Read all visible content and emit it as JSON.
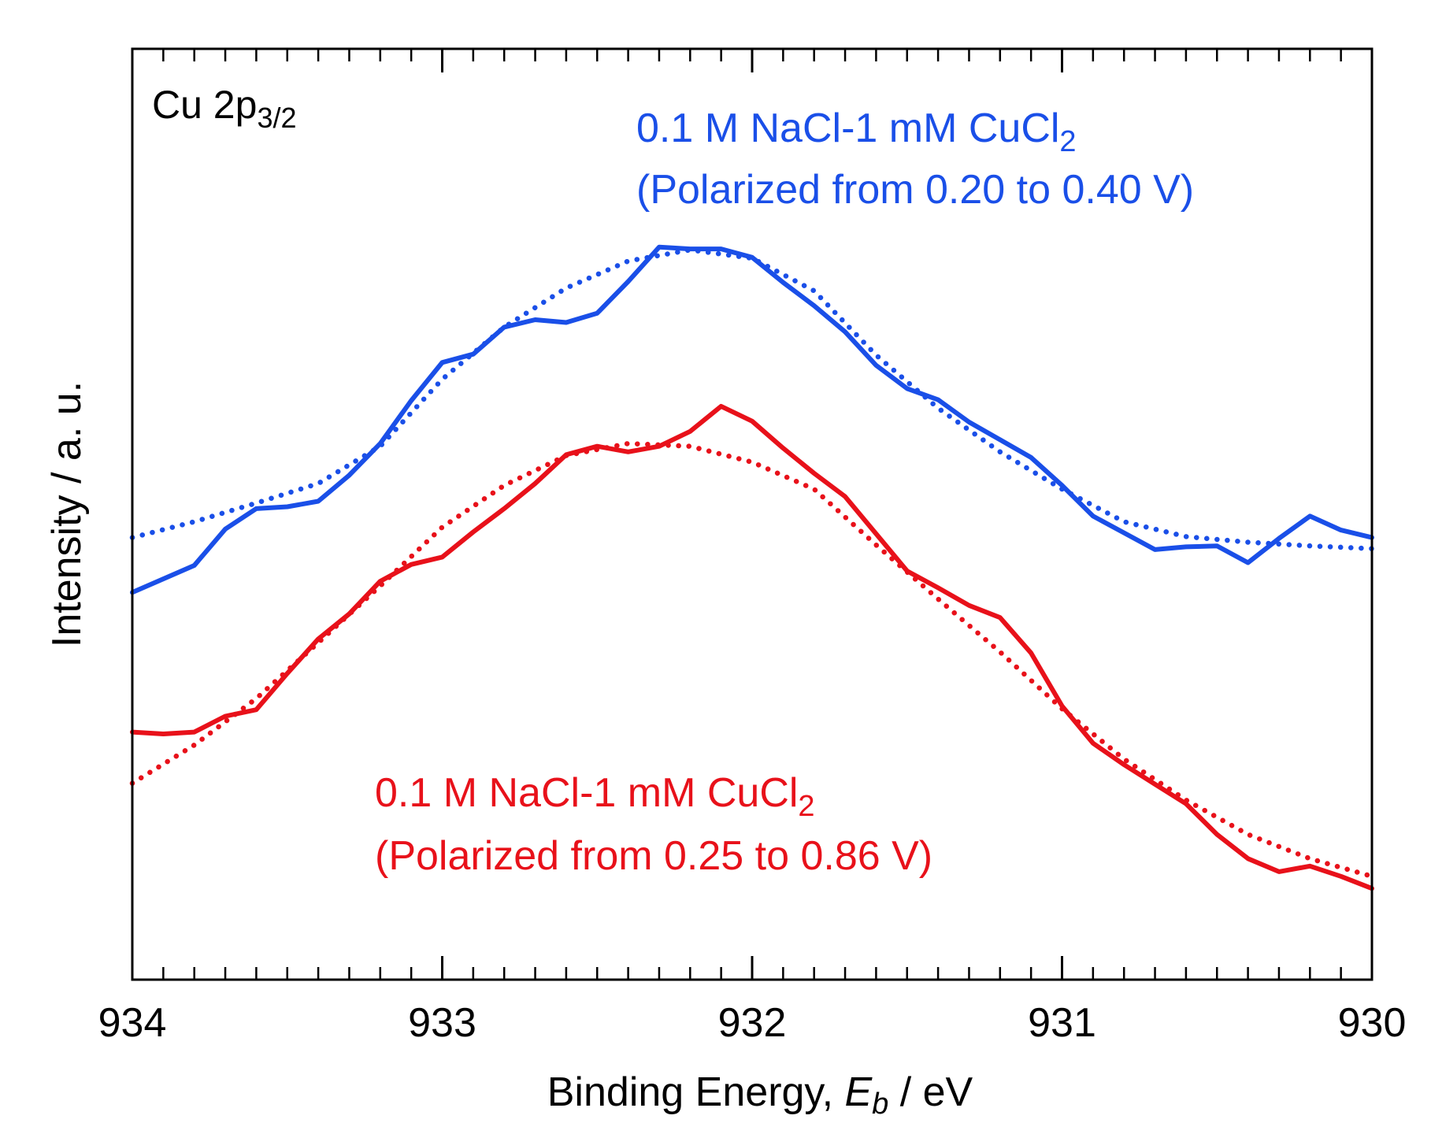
{
  "chart_data": {
    "type": "line",
    "title": "",
    "panel_label": "Cu 2p",
    "panel_label_sub": "3/2",
    "xlabel": "Binding Energy, ",
    "xlabel_var": "E",
    "xlabel_var_sub": "b",
    "xlabel_unit": " / eV",
    "ylabel": "Intensity / a. u.",
    "xlim": [
      934,
      930
    ],
    "ylim": [
      0,
      100
    ],
    "xticks": [
      934,
      933,
      932,
      931,
      930
    ],
    "xtick_labels": [
      "934",
      "933",
      "932",
      "931",
      "930"
    ],
    "grid": false,
    "colors": {
      "blue": "#1a4fe8",
      "red": "#e8111a",
      "axis": "#000000"
    },
    "annotations": [
      {
        "id": "blue",
        "lines": [
          {
            "text": "0.1 M NaCl-1 mM CuCl",
            "sub": "2"
          },
          {
            "text": "(Polarized from 0.20 to 0.40 V)",
            "sub": ""
          }
        ]
      },
      {
        "id": "red",
        "lines": [
          {
            "text": "0.1 M NaCl-1 mM CuCl",
            "sub": "2"
          },
          {
            "text": "(Polarized from 0.25 to 0.86 V)",
            "sub": ""
          }
        ]
      }
    ],
    "series": [
      {
        "name": "0.1 M NaCl-1 mM CuCl2 (Polarized from 0.20 to 0.40 V) measured",
        "color": "#1a4fe8",
        "style": "solid",
        "x": [
          934.0,
          933.8,
          933.7,
          933.6,
          933.5,
          933.4,
          933.3,
          933.2,
          933.1,
          933.0,
          932.9,
          932.8,
          932.7,
          932.6,
          932.5,
          932.4,
          932.3,
          932.2,
          932.1,
          932.0,
          931.9,
          931.8,
          931.7,
          931.6,
          931.5,
          931.4,
          931.3,
          931.2,
          931.1,
          931.0,
          930.9,
          930.8,
          930.7,
          930.6,
          930.5,
          930.4,
          930.3,
          930.2,
          930.1,
          930.0
        ],
        "y": [
          41.6,
          44.5,
          48.4,
          50.6,
          50.8,
          51.4,
          54.2,
          57.6,
          62.2,
          66.3,
          67.2,
          70.1,
          70.9,
          70.6,
          71.6,
          75.0,
          78.7,
          78.5,
          78.5,
          77.6,
          74.9,
          72.4,
          69.6,
          66.0,
          63.5,
          62.3,
          59.9,
          58.0,
          56.1,
          53.1,
          49.8,
          48.0,
          46.2,
          46.5,
          46.6,
          44.8,
          47.4,
          49.8,
          48.3,
          47.5
        ]
      },
      {
        "name": "0.1 M NaCl-1 mM CuCl2 (Polarized from 0.20 to 0.40 V) fit",
        "color": "#1a4fe8",
        "style": "dotted",
        "x": [
          934.0,
          933.8,
          933.6,
          933.4,
          933.2,
          933.0,
          932.8,
          932.6,
          932.4,
          932.2,
          932.0,
          931.8,
          931.6,
          931.4,
          931.2,
          931.0,
          930.8,
          930.6,
          930.4,
          930.2,
          930.0
        ],
        "y": [
          47.5,
          49.2,
          51.2,
          53.3,
          57.3,
          64.5,
          70.1,
          74.3,
          77.2,
          78.4,
          77.5,
          74.0,
          67.1,
          61.4,
          56.7,
          52.7,
          49.2,
          47.6,
          47.0,
          46.6,
          46.3
        ]
      },
      {
        "name": "0.1 M NaCl-1 mM CuCl2 (Polarized from 0.25 to 0.86 V) measured",
        "color": "#e8111a",
        "style": "solid",
        "x": [
          934.0,
          933.9,
          933.8,
          933.7,
          933.6,
          933.5,
          933.4,
          933.3,
          933.2,
          933.1,
          933.0,
          932.9,
          932.8,
          932.7,
          932.6,
          932.5,
          932.4,
          932.3,
          932.2,
          932.1,
          932.0,
          931.9,
          931.8,
          931.7,
          931.6,
          931.5,
          931.4,
          931.3,
          931.2,
          931.1,
          931.0,
          930.9,
          930.8,
          930.7,
          930.6,
          930.5,
          930.4,
          930.3,
          930.2,
          930.1,
          930.0
        ],
        "y": [
          26.6,
          26.4,
          26.6,
          28.3,
          29.0,
          32.9,
          36.6,
          39.3,
          42.8,
          44.6,
          45.4,
          48.1,
          50.6,
          53.3,
          56.4,
          57.3,
          56.7,
          57.3,
          58.9,
          61.6,
          60.0,
          57.1,
          54.4,
          51.9,
          47.9,
          43.9,
          42.1,
          40.2,
          38.9,
          35.1,
          29.4,
          25.4,
          23.1,
          21.0,
          18.9,
          15.6,
          13.0,
          11.6,
          12.2,
          11.1,
          9.8
        ]
      },
      {
        "name": "0.1 M NaCl-1 mM CuCl2 (Polarized from 0.25 to 0.86 V) fit",
        "color": "#e8111a",
        "style": "dotted",
        "x": [
          934.0,
          933.8,
          933.6,
          933.4,
          933.2,
          933.0,
          932.8,
          932.6,
          932.4,
          932.2,
          932.0,
          931.8,
          931.6,
          931.4,
          931.2,
          931.0,
          930.8,
          930.6,
          930.4,
          930.2,
          930.0
        ],
        "y": [
          21.1,
          25.2,
          30.2,
          36.2,
          42.3,
          48.6,
          53.1,
          56.3,
          57.6,
          57.3,
          55.6,
          52.7,
          46.7,
          40.9,
          35.2,
          29.1,
          23.7,
          19.3,
          15.6,
          13.0,
          11.1
        ]
      }
    ]
  }
}
